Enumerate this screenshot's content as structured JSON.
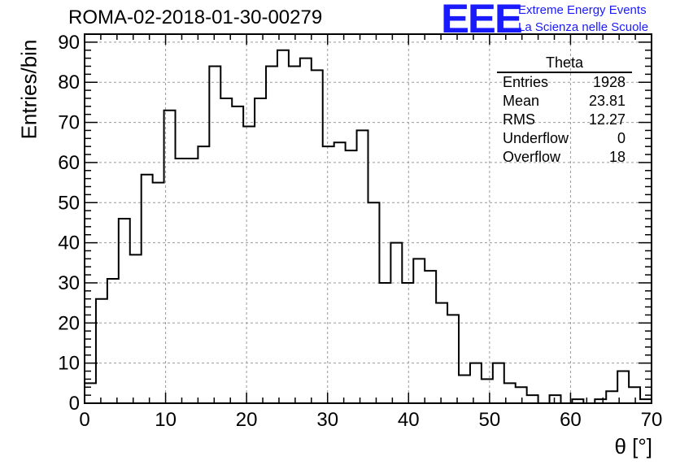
{
  "header": {
    "title": "ROMA-02-2018-01-30-00279",
    "logo_text": "EEE",
    "logo_line1": "Extreme Energy Events",
    "logo_line2": "La Scienza nelle Scuole",
    "logo_color": "#1a1aff"
  },
  "stats": {
    "title": "Theta",
    "rows": [
      {
        "label": "Entries",
        "value": "1928"
      },
      {
        "label": "Mean",
        "value": "23.81"
      },
      {
        "label": "RMS",
        "value": "12.27"
      },
      {
        "label": "Underflow",
        "value": "0"
      },
      {
        "label": "Overflow",
        "value": "18"
      }
    ]
  },
  "chart_data": {
    "type": "bar",
    "style": "step-histogram",
    "title": "ROMA-02-2018-01-30-00279",
    "xlabel": "θ [°]",
    "ylabel": "Entries/bin",
    "xlim": [
      0,
      70
    ],
    "ylim": [
      0,
      92
    ],
    "bin_width": 1.4,
    "bin_edges_start": 0,
    "x_ticks": [
      0,
      10,
      20,
      30,
      40,
      50,
      60,
      70
    ],
    "y_ticks": [
      0,
      10,
      20,
      30,
      40,
      50,
      60,
      70,
      80,
      90
    ],
    "grid": true,
    "legend": "top-right stats box",
    "values": [
      5,
      26,
      31,
      46,
      37,
      57,
      55,
      73,
      61,
      61,
      64,
      84,
      76,
      74,
      69,
      76,
      84,
      88,
      84,
      86,
      83,
      64,
      65,
      63,
      68,
      50,
      30,
      40,
      30,
      36,
      33,
      25,
      22,
      7,
      10,
      6,
      10,
      5,
      4,
      2,
      0,
      2,
      0,
      1,
      0,
      1,
      3,
      8,
      4,
      1
    ]
  }
}
